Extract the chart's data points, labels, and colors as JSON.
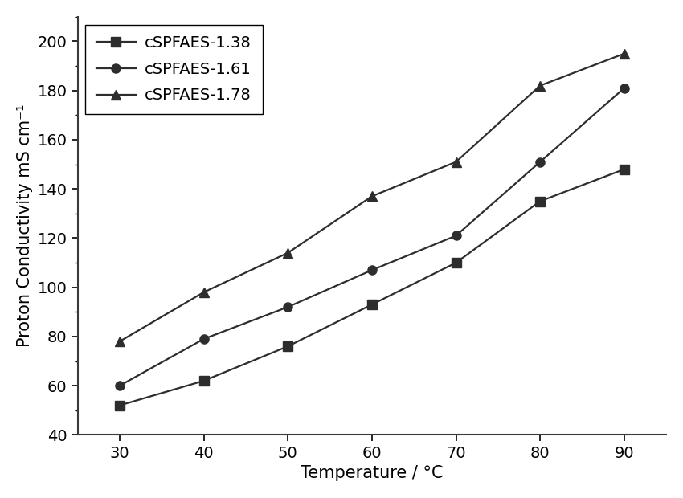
{
  "x": [
    30,
    40,
    50,
    60,
    70,
    80,
    90
  ],
  "series": [
    {
      "label": "cSPFAES-1.38",
      "y": [
        52,
        62,
        76,
        93,
        110,
        135,
        148
      ],
      "marker": "s",
      "color": "#2d2d2d",
      "linestyle": "-"
    },
    {
      "label": "cSPFAES-1.61",
      "y": [
        60,
        79,
        92,
        107,
        121,
        151,
        181
      ],
      "marker": "o",
      "color": "#2d2d2d",
      "linestyle": "-"
    },
    {
      "label": "cSPFAES-1.78",
      "y": [
        78,
        98,
        114,
        137,
        151,
        182,
        195
      ],
      "marker": "^",
      "color": "#2d2d2d",
      "linestyle": "-"
    }
  ],
  "xlabel": "Temperature / °C",
  "ylabel": "Proton Conductivity mS cm⁻¹",
  "xlim": [
    25,
    95
  ],
  "ylim": [
    40,
    210
  ],
  "yticks": [
    40,
    60,
    80,
    100,
    120,
    140,
    160,
    180,
    200
  ],
  "xticks": [
    30,
    40,
    50,
    60,
    70,
    80,
    90
  ],
  "marker_size": 8,
  "linewidth": 1.6,
  "legend_fontsize": 14,
  "axis_fontsize": 15,
  "tick_fontsize": 14,
  "background_color": "#ffffff",
  "fig_width": 8.5,
  "fig_height": 6.2,
  "spine_color": "#3a3a3a",
  "spine_linewidth": 1.5
}
